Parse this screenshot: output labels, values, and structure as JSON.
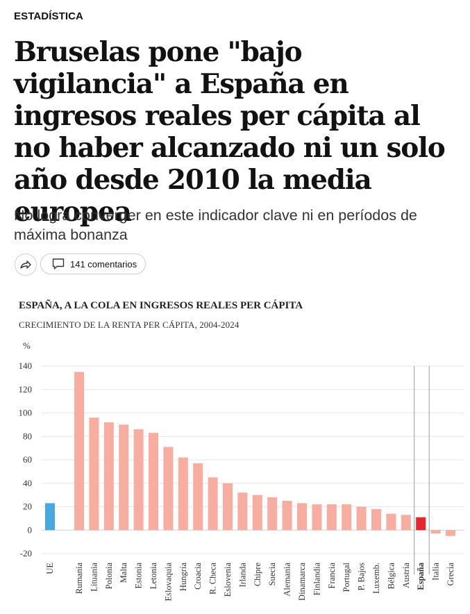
{
  "article": {
    "section": "ESTADÍSTICA",
    "headline": "Bruselas pone \"bajo vigilancia\" a España en ingresos reales per cápita al no haber alcanzado ni un solo año desde 2010 la media europea",
    "subtitle": "No logra converger en este indicador clave ni en períodos de máxima bonanza",
    "comments_label": "141 comentarios"
  },
  "icons": {
    "share": "share-arrow-icon",
    "comments": "speech-bubble-icon"
  },
  "colors": {
    "eu": "#4aa8e0",
    "country": "#f7aea1",
    "spain": "#e8262d",
    "grid": "#e6e6e6",
    "text": "#333333"
  },
  "chart_data": {
    "type": "bar",
    "title": "ESPAÑA, A LA COLA EN INGRESOS REALES PER CÁPITA",
    "subtitle": "CRECIMIENTO DE LA RENTA PER CÁPITA, 2004-2024",
    "ylabel": "%",
    "ylim": [
      -20,
      140
    ],
    "yticks": [
      -20,
      0,
      20,
      40,
      60,
      80,
      100,
      120,
      140
    ],
    "grid": true,
    "categories": [
      "UE",
      "Rumanía",
      "Lituania",
      "Polonia",
      "Malta",
      "Estonia",
      "Letonia",
      "Eslovaquia",
      "Hungría",
      "Croacia",
      "R. Checa",
      "Eslovenia",
      "Irlanda",
      "Chipre",
      "Suecia",
      "Alemania",
      "Dinamarca",
      "Finlandia",
      "Francia",
      "Portugal",
      "P. Bajos",
      "Luxemb.",
      "Bélgica",
      "Austria",
      "España",
      "Italia",
      "Grecia"
    ],
    "values": [
      23,
      135,
      96,
      92,
      90,
      86,
      83,
      71,
      62,
      57,
      45,
      40,
      32,
      30,
      28,
      25,
      23,
      22,
      22,
      22,
      20,
      18,
      14,
      13,
      11,
      -3,
      -5
    ],
    "highlight": {
      "UE": "eu",
      "España": "spain"
    }
  }
}
